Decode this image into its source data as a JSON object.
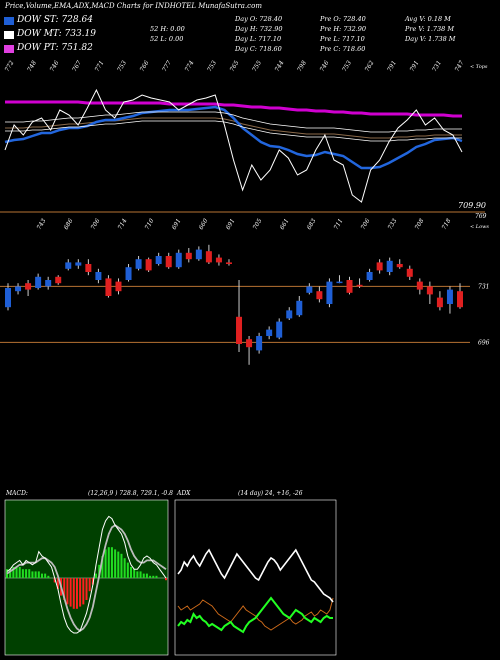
{
  "title": "Price,Volume,EMA,ADX,MACD Charts for INDHOTEL MunafaSutra.com",
  "legend": [
    {
      "label": "DOW ST: 728.64",
      "color": "#1f5fd6"
    },
    {
      "label": "DOW MT: 733.19",
      "color": "#ffffff"
    },
    {
      "label": "DOW PT: 751.82",
      "color": "#e040e0"
    }
  ],
  "stats": {
    "col1": [
      "",
      "52 H: 0.00",
      "52 L: 0.00"
    ],
    "col2": [
      "Day O: 728.40",
      "Day H: 732.90",
      "Day L: 717.10",
      "Day C: 718.60"
    ],
    "col3": [
      "Pre O: 728.40",
      "Pre H: 732.90",
      "Pre L: 717.10",
      "Pre C: 718.60"
    ],
    "col4": [
      "Avg V: 0.18 M",
      "Pre V: 1.738 M",
      "Day V: 1.738 M"
    ]
  },
  "chart_data": [
    {
      "type": "line",
      "name": "price-ema",
      "corner_label": "< Tops",
      "bottom_corner_label": "< Lows",
      "price_label": "709.90",
      "line_label": "769",
      "top_labels": [
        "772",
        "748",
        "746",
        "767",
        "771",
        "753",
        "766",
        "777",
        "774",
        "753",
        "765",
        "755",
        "744",
        "798",
        "746",
        "753",
        "762",
        "791",
        "791",
        "731",
        "747"
      ],
      "bottom_labels": [
        "743",
        "686",
        "706",
        "714",
        "710",
        "691",
        "660",
        "691",
        "705",
        "661",
        "683",
        "711",
        "706",
        "733",
        "708",
        "718"
      ],
      "close": [
        720,
        745,
        735,
        748,
        752,
        740,
        760,
        755,
        745,
        762,
        780,
        760,
        752,
        768,
        770,
        775,
        772,
        770,
        768,
        760,
        765,
        770,
        772,
        775,
        745,
        710,
        680,
        705,
        690,
        700,
        720,
        712,
        695,
        700,
        720,
        735,
        710,
        705,
        675,
        668,
        700,
        710,
        728,
        742,
        750,
        760,
        745,
        752,
        740,
        735,
        718
      ],
      "ema_short": [
        728,
        730,
        731,
        734,
        737,
        737,
        740,
        742,
        742,
        744,
        748,
        750,
        750,
        752,
        754,
        757,
        758,
        759,
        760,
        760,
        760,
        761,
        762,
        763,
        760,
        752,
        742,
        735,
        728,
        724,
        723,
        720,
        716,
        714,
        715,
        718,
        716,
        714,
        708,
        702,
        702,
        703,
        707,
        712,
        717,
        723,
        726,
        730,
        731,
        732,
        729
      ],
      "ema_mid": [
        742,
        742,
        742,
        743,
        743,
        744,
        745,
        746,
        746,
        747,
        748,
        749,
        749,
        750,
        751,
        752,
        752,
        752,
        752,
        752,
        752,
        752,
        752,
        752,
        751,
        749,
        746,
        744,
        742,
        740,
        739,
        738,
        737,
        736,
        736,
        736,
        736,
        735,
        734,
        733,
        732,
        732,
        732,
        733,
        733,
        734,
        734,
        735,
        735,
        735,
        735
      ],
      "ema_long": [
        768,
        768,
        768,
        768,
        768,
        768,
        768,
        768,
        768,
        767,
        767,
        767,
        767,
        767,
        767,
        767,
        767,
        767,
        766,
        766,
        766,
        766,
        766,
        766,
        765,
        765,
        764,
        763,
        763,
        762,
        762,
        761,
        760,
        760,
        759,
        759,
        758,
        758,
        757,
        757,
        756,
        756,
        756,
        756,
        756,
        755,
        755,
        755,
        755,
        754,
        754
      ]
    },
    {
      "type": "candlestick",
      "name": "candles",
      "level_labels": [
        "731",
        "696"
      ],
      "candles": [
        {
          "o": 718,
          "c": 730,
          "h": 733,
          "l": 716
        },
        {
          "o": 728,
          "c": 731,
          "h": 733,
          "l": 726
        },
        {
          "o": 733,
          "c": 729,
          "h": 735,
          "l": 725
        },
        {
          "o": 730,
          "c": 737,
          "h": 739,
          "l": 729
        },
        {
          "o": 731,
          "c": 735,
          "h": 737,
          "l": 729
        },
        {
          "o": 737,
          "c": 733,
          "h": 738,
          "l": 732
        },
        {
          "o": 742,
          "c": 746,
          "h": 748,
          "l": 741
        },
        {
          "o": 744,
          "c": 746,
          "h": 748,
          "l": 742
        },
        {
          "o": 745,
          "c": 740,
          "h": 748,
          "l": 738
        },
        {
          "o": 735,
          "c": 740,
          "h": 742,
          "l": 733
        },
        {
          "o": 736,
          "c": 725,
          "h": 738,
          "l": 724
        },
        {
          "o": 734,
          "c": 728,
          "h": 736,
          "l": 726
        },
        {
          "o": 735,
          "c": 743,
          "h": 745,
          "l": 734
        },
        {
          "o": 742,
          "c": 748,
          "h": 750,
          "l": 741
        },
        {
          "o": 748,
          "c": 741,
          "h": 749,
          "l": 740
        },
        {
          "o": 745,
          "c": 750,
          "h": 752,
          "l": 744
        },
        {
          "o": 750,
          "c": 743,
          "h": 752,
          "l": 742
        },
        {
          "o": 743,
          "c": 752,
          "h": 754,
          "l": 742
        },
        {
          "o": 752,
          "c": 748,
          "h": 755,
          "l": 746
        },
        {
          "o": 748,
          "c": 754,
          "h": 756,
          "l": 747
        },
        {
          "o": 753,
          "c": 746,
          "h": 757,
          "l": 745
        },
        {
          "o": 749,
          "c": 746,
          "h": 751,
          "l": 744
        },
        {
          "o": 746,
          "c": 745,
          "h": 748,
          "l": 744
        },
        {
          "o": 712,
          "c": 695,
          "h": 735,
          "l": 690
        },
        {
          "o": 698,
          "c": 693,
          "h": 700,
          "l": 682
        },
        {
          "o": 691,
          "c": 700,
          "h": 702,
          "l": 689
        },
        {
          "o": 700,
          "c": 704,
          "h": 706,
          "l": 698
        },
        {
          "o": 699,
          "c": 709,
          "h": 711,
          "l": 698
        },
        {
          "o": 711,
          "c": 716,
          "h": 718,
          "l": 710
        },
        {
          "o": 713,
          "c": 722,
          "h": 725,
          "l": 712
        },
        {
          "o": 727,
          "c": 731,
          "h": 733,
          "l": 726
        },
        {
          "o": 728,
          "c": 723,
          "h": 731,
          "l": 721
        },
        {
          "o": 720,
          "c": 734,
          "h": 736,
          "l": 718
        },
        {
          "o": 734,
          "c": 734,
          "h": 738,
          "l": 733
        },
        {
          "o": 735,
          "c": 727,
          "h": 737,
          "l": 726
        },
        {
          "o": 732,
          "c": 731,
          "h": 736,
          "l": 730
        },
        {
          "o": 735,
          "c": 740,
          "h": 742,
          "l": 734
        },
        {
          "o": 746,
          "c": 741,
          "h": 748,
          "l": 739
        },
        {
          "o": 740,
          "c": 747,
          "h": 749,
          "l": 738
        },
        {
          "o": 745,
          "c": 743,
          "h": 748,
          "l": 742
        },
        {
          "o": 742,
          "c": 737,
          "h": 744,
          "l": 735
        },
        {
          "o": 734,
          "c": 729,
          "h": 736,
          "l": 726
        },
        {
          "o": 731,
          "c": 726,
          "h": 734,
          "l": 720
        },
        {
          "o": 724,
          "c": 718,
          "h": 728,
          "l": 716
        },
        {
          "o": 720,
          "c": 729,
          "h": 731,
          "l": 714
        },
        {
          "o": 728,
          "c": 718,
          "h": 733,
          "l": 717
        }
      ]
    },
    {
      "type": "bar",
      "name": "macd",
      "label": "MACD:",
      "params": "(12,26,9 ) 728.8, 729.1, -0.8",
      "hist": [
        4,
        4,
        5,
        5,
        5,
        4,
        4,
        4,
        3,
        3,
        3,
        2,
        2,
        1,
        0,
        -2,
        -5,
        -8,
        -10,
        -12,
        -13,
        -14,
        -14,
        -13,
        -12,
        -10,
        -6,
        -3,
        2,
        6,
        10,
        13,
        14,
        14,
        13,
        12,
        11,
        9,
        7,
        5,
        4,
        3,
        3,
        2,
        2,
        1,
        1,
        1,
        0,
        0,
        -1
      ],
      "macd": [
        3,
        4,
        6,
        7,
        8,
        6,
        8,
        7,
        6,
        7,
        12,
        10,
        9,
        7,
        5,
        0,
        -5,
        -12,
        -18,
        -22,
        -24,
        -25,
        -25,
        -24,
        -20,
        -16,
        -10,
        -3,
        6,
        14,
        22,
        26,
        28,
        27,
        24,
        22,
        20,
        16,
        10,
        6,
        4,
        4,
        6,
        9,
        10,
        9,
        7,
        6,
        4,
        2,
        0
      ],
      "signal": [
        2,
        3,
        4,
        5,
        6,
        6,
        7,
        7,
        7,
        7,
        8,
        9,
        9,
        8,
        7,
        5,
        1,
        -4,
        -9,
        -14,
        -18,
        -21,
        -23,
        -24,
        -23,
        -21,
        -18,
        -13,
        -6,
        1,
        9,
        15,
        20,
        23,
        24,
        23,
        22,
        20,
        17,
        13,
        10,
        8,
        7,
        7,
        8,
        8,
        8,
        7,
        6,
        5,
        4
      ]
    },
    {
      "type": "line",
      "name": "adx",
      "label": "ADX",
      "params": "(14 day) 24, +16, -26",
      "plus_di": [
        12,
        14,
        13,
        15,
        14,
        18,
        16,
        17,
        15,
        14,
        12,
        13,
        12,
        11,
        10,
        12,
        13,
        14,
        12,
        11,
        10,
        9,
        12,
        14,
        15,
        16,
        18,
        20,
        22,
        24,
        26,
        24,
        22,
        20,
        18,
        17,
        16,
        18,
        20,
        19,
        18,
        16,
        15,
        14,
        16,
        15,
        14,
        16,
        17,
        16,
        16
      ],
      "minus_di": [
        22,
        20,
        21,
        22,
        20,
        21,
        22,
        23,
        25,
        24,
        23,
        22,
        20,
        18,
        17,
        16,
        15,
        14,
        16,
        18,
        20,
        22,
        20,
        19,
        18,
        17,
        15,
        14,
        12,
        11,
        10,
        11,
        12,
        13,
        14,
        15,
        16,
        14,
        13,
        14,
        15,
        17,
        18,
        19,
        17,
        18,
        20,
        19,
        18,
        20,
        26
      ],
      "adx": [
        38,
        40,
        44,
        42,
        45,
        47,
        44,
        42,
        45,
        48,
        50,
        47,
        44,
        41,
        38,
        36,
        39,
        42,
        45,
        48,
        46,
        44,
        42,
        40,
        38,
        36,
        35,
        38,
        41,
        44,
        46,
        45,
        43,
        40,
        42,
        44,
        46,
        48,
        50,
        47,
        44,
        41,
        38,
        35,
        34,
        32,
        30,
        28,
        27,
        26,
        24
      ]
    }
  ]
}
